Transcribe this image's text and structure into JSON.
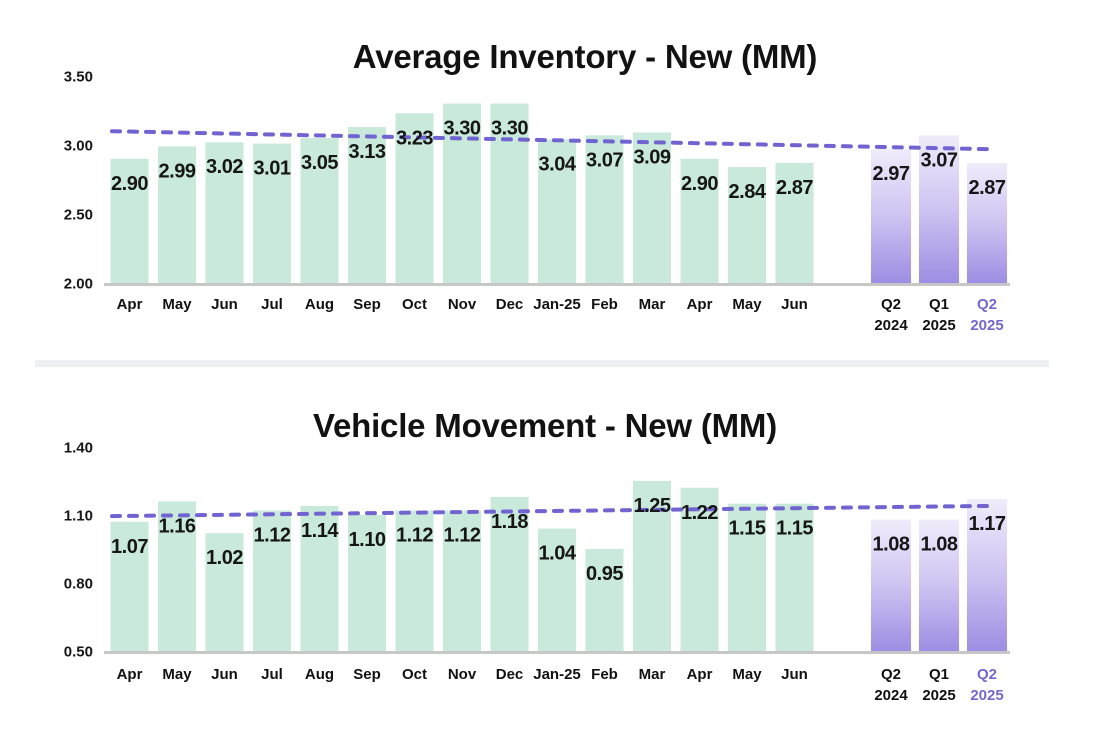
{
  "chart_data": [
    {
      "type": "bar",
      "title": "Average Inventory - New (MM)",
      "categories": [
        "Apr",
        "May",
        "Jun",
        "Jul",
        "Aug",
        "Sep",
        "Oct",
        "Nov",
        "Dec",
        "Jan-25",
        "Feb",
        "Mar",
        "Apr",
        "May",
        "Jun"
      ],
      "values": [
        2.9,
        2.99,
        3.02,
        3.01,
        3.05,
        3.13,
        3.23,
        3.3,
        3.3,
        3.04,
        3.07,
        3.09,
        2.9,
        2.84,
        2.87
      ],
      "quarters": [
        {
          "line1": "Q2",
          "line2": "2024",
          "value": 2.97,
          "highlight": false
        },
        {
          "line1": "Q1",
          "line2": "2025",
          "value": 3.07,
          "highlight": false
        },
        {
          "line1": "Q2",
          "line2": "2025",
          "value": 2.87,
          "highlight": true
        }
      ],
      "ylim": [
        2.0,
        3.5
      ],
      "yticks": [
        2.0,
        2.5,
        3.0,
        3.5
      ],
      "trend": {
        "start": 3.1,
        "end": 2.97
      },
      "grid": false,
      "legend": "none"
    },
    {
      "type": "bar",
      "title": "Vehicle Movement - New (MM)",
      "categories": [
        "Apr",
        "May",
        "Jun",
        "Jul",
        "Aug",
        "Sep",
        "Oct",
        "Nov",
        "Dec",
        "Jan-25",
        "Feb",
        "Mar",
        "Apr",
        "May",
        "Jun"
      ],
      "values": [
        1.07,
        1.16,
        1.02,
        1.12,
        1.14,
        1.1,
        1.12,
        1.12,
        1.18,
        1.04,
        0.95,
        1.25,
        1.22,
        1.15,
        1.15
      ],
      "quarters": [
        {
          "line1": "Q2",
          "line2": "2024",
          "value": 1.08,
          "highlight": false
        },
        {
          "line1": "Q1",
          "line2": "2025",
          "value": 1.08,
          "highlight": false
        },
        {
          "line1": "Q2",
          "line2": "2025",
          "value": 1.17,
          "highlight": true
        }
      ],
      "ylim": [
        0.5,
        1.4
      ],
      "yticks": [
        0.5,
        0.8,
        1.1,
        1.4
      ],
      "trend": {
        "start": 1.095,
        "end": 1.14
      },
      "grid": false,
      "legend": "none"
    }
  ],
  "colors": {
    "monthly_bar": "#c9e9da",
    "quarterly_bar_top": "#efecfb",
    "quarterly_bar_mid": "#cfc3f1",
    "quarterly_bar_bottom": "#9e8de3",
    "trend_line": "#7164d1",
    "highlight_label": "#7468cb",
    "value_text": "#161616",
    "tick_text": "#161616",
    "category_text": "#111111",
    "axis_line": "#c7c7c7",
    "divider": "#eef0f4",
    "title_text": "#121212",
    "background": "#ffffff"
  }
}
